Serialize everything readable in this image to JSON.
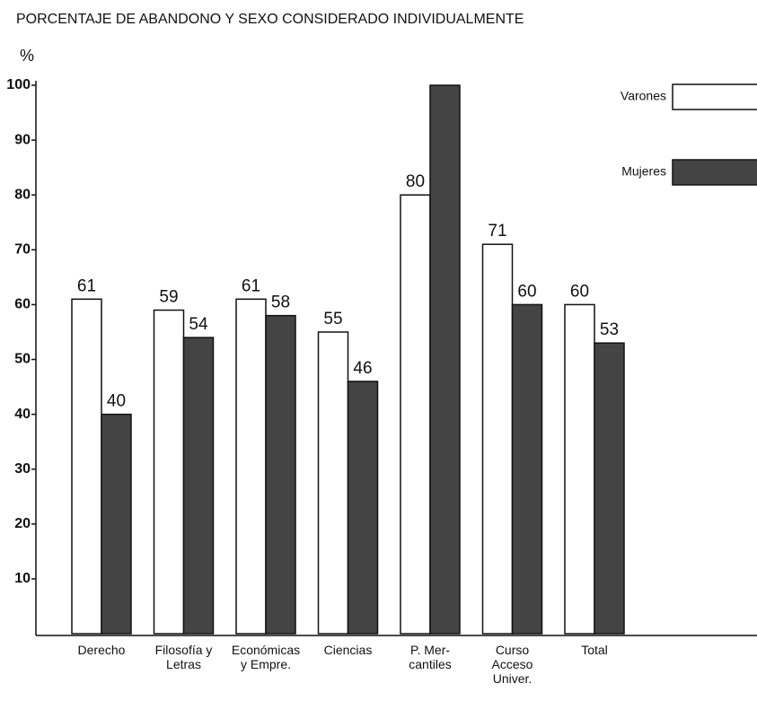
{
  "chart_data": {
    "type": "bar",
    "title": "PORCENTAJE DE ABANDONO Y SEXO CONSIDERADO INDIVIDUALMENTE",
    "y_label": "%",
    "categories": [
      "Derecho",
      "Filosofía y\nLetras",
      "Económicas\ny Empre.",
      "Ciencias",
      "P. Mer-\ncantiles",
      "Curso\nAcceso\nUniver.",
      "Total"
    ],
    "series": [
      {
        "name": "Varones",
        "color": "#ffffff",
        "values": [
          61,
          59,
          61,
          55,
          80,
          71,
          60
        ]
      },
      {
        "name": "Mujeres",
        "color": "#444444",
        "values": [
          40,
          54,
          58,
          46,
          100,
          60,
          53
        ],
        "value_labels": [
          "40",
          "54",
          "58",
          "46",
          null,
          "60",
          "53"
        ]
      }
    ],
    "ylim": [
      0,
      100
    ],
    "yticks": [
      10,
      20,
      30,
      40,
      50,
      60,
      70,
      80,
      90,
      100
    ],
    "legend": "top-right"
  }
}
